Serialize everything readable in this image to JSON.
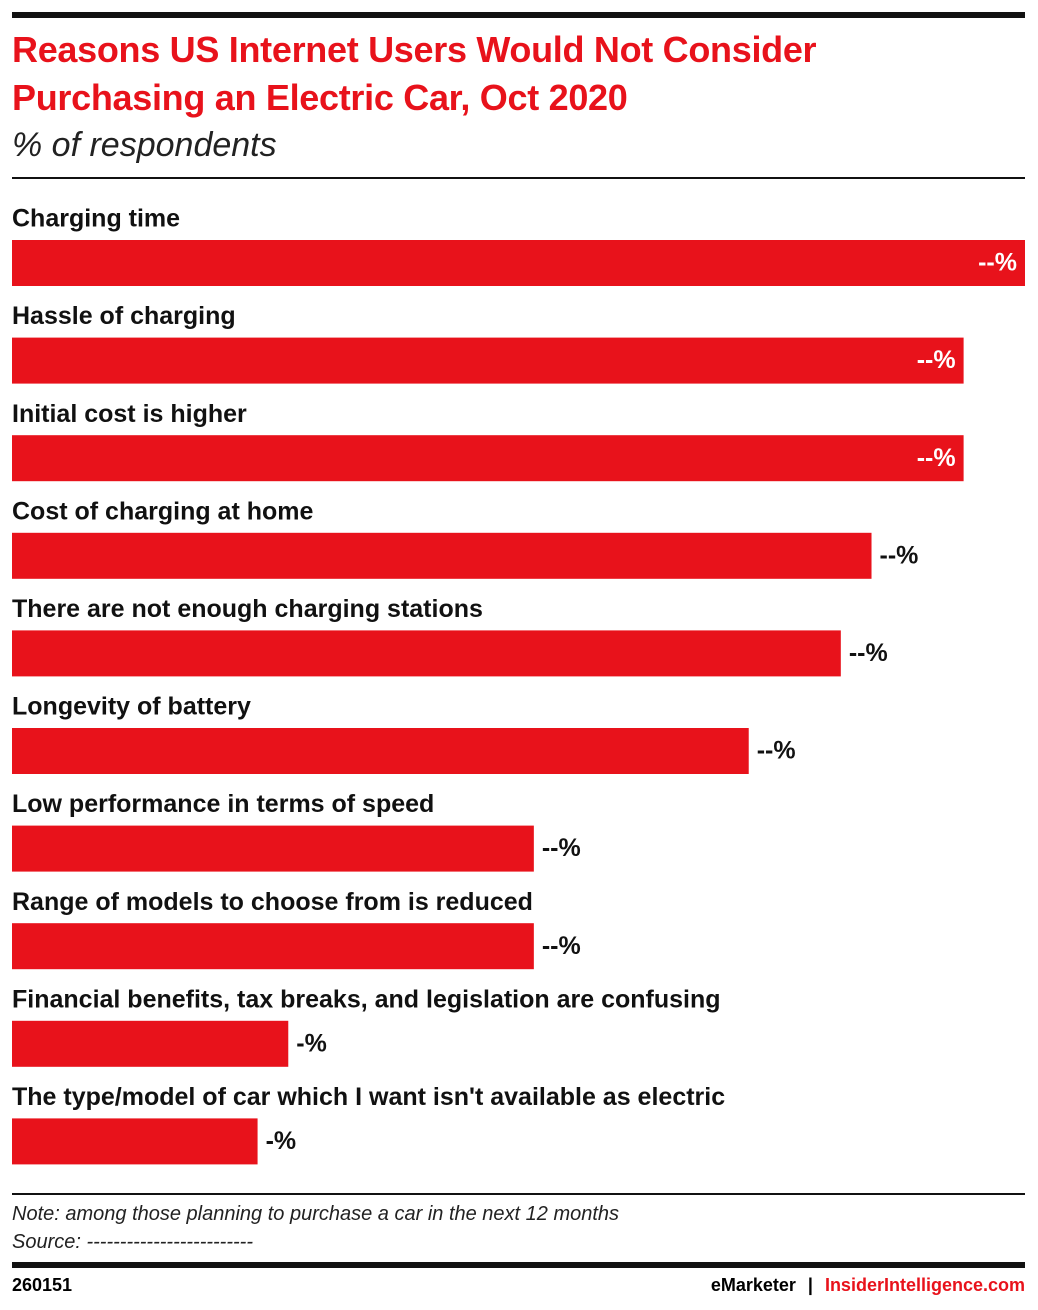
{
  "chart_data": {
    "type": "bar",
    "orientation": "horizontal",
    "title": "Reasons US Internet Users Would Not Consider Purchasing an Electric Car, Oct 2020",
    "subtitle": "% of respondents",
    "categories": [
      "Charging time",
      "Hassle of charging",
      "Initial cost is higher",
      "Cost of charging at home",
      "There are not enough charging stations",
      "Longevity of battery",
      "Low performance in terms of speed",
      "Range of models to choose from is reduced",
      "Financial benefits, tax breaks, and legislation are confusing",
      "The type/model of car which I want isn't available as electric"
    ],
    "values": [
      33,
      31,
      31,
      28,
      27,
      24,
      17,
      17,
      9,
      8
    ],
    "value_labels": [
      "--%",
      "--%",
      "--%",
      "--%",
      "--%",
      "--%",
      "--%",
      "--%",
      "-%",
      "-%"
    ],
    "color": "#e8121b",
    "xlim": [
      0,
      33
    ],
    "note": "Note: among those planning to purchase a car in the next 12 months",
    "source": "Source: -------------------------"
  },
  "footer": {
    "id": "260151",
    "brand": "eMarketer",
    "separator": "|",
    "site": "InsiderIntelligence.com"
  }
}
